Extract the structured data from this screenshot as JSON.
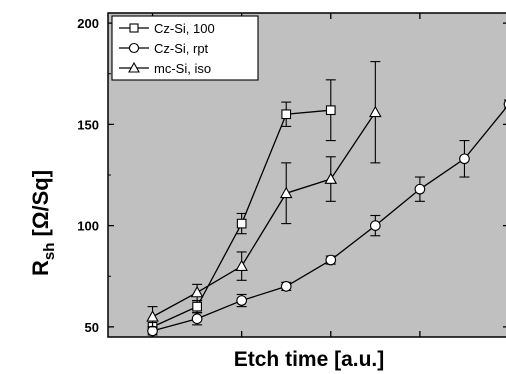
{
  "chart_data": {
    "type": "line",
    "title": "",
    "xlabel": "Etch time [a.u.]",
    "ylabel_main": "R",
    "ylabel_sub": "sh",
    "ylabel_unit": "[Ω/Sq]",
    "ylim": [
      45,
      205
    ],
    "xlim": [
      0,
      9
    ],
    "yticks": [
      50,
      100,
      150,
      200
    ],
    "xticks": [
      1,
      3,
      5,
      7,
      9
    ],
    "grid": false,
    "legend_position": "top-left",
    "background_color": "#c0c0c0",
    "series": [
      {
        "name": "Cz-Si, 100",
        "marker": "square",
        "x": [
          1,
          2,
          3,
          4,
          5
        ],
        "y": [
          50,
          60,
          101,
          155,
          157
        ],
        "err": [
          3,
          3,
          5,
          6,
          15
        ]
      },
      {
        "name": "Cz-Si, rpt",
        "marker": "circle",
        "x": [
          1,
          2,
          3,
          4,
          5,
          6,
          7,
          8,
          9
        ],
        "y": [
          48,
          54,
          63,
          70,
          83,
          100,
          118,
          133,
          160
        ],
        "err": [
          2,
          3,
          3,
          2,
          2,
          5,
          6,
          9,
          2
        ]
      },
      {
        "name": "mc-Si, iso",
        "marker": "triangle",
        "x": [
          1,
          2,
          3,
          4,
          5,
          6
        ],
        "y": [
          55,
          67,
          80,
          116,
          123,
          156
        ],
        "err": [
          5,
          4,
          7,
          15,
          11,
          25
        ]
      }
    ]
  }
}
